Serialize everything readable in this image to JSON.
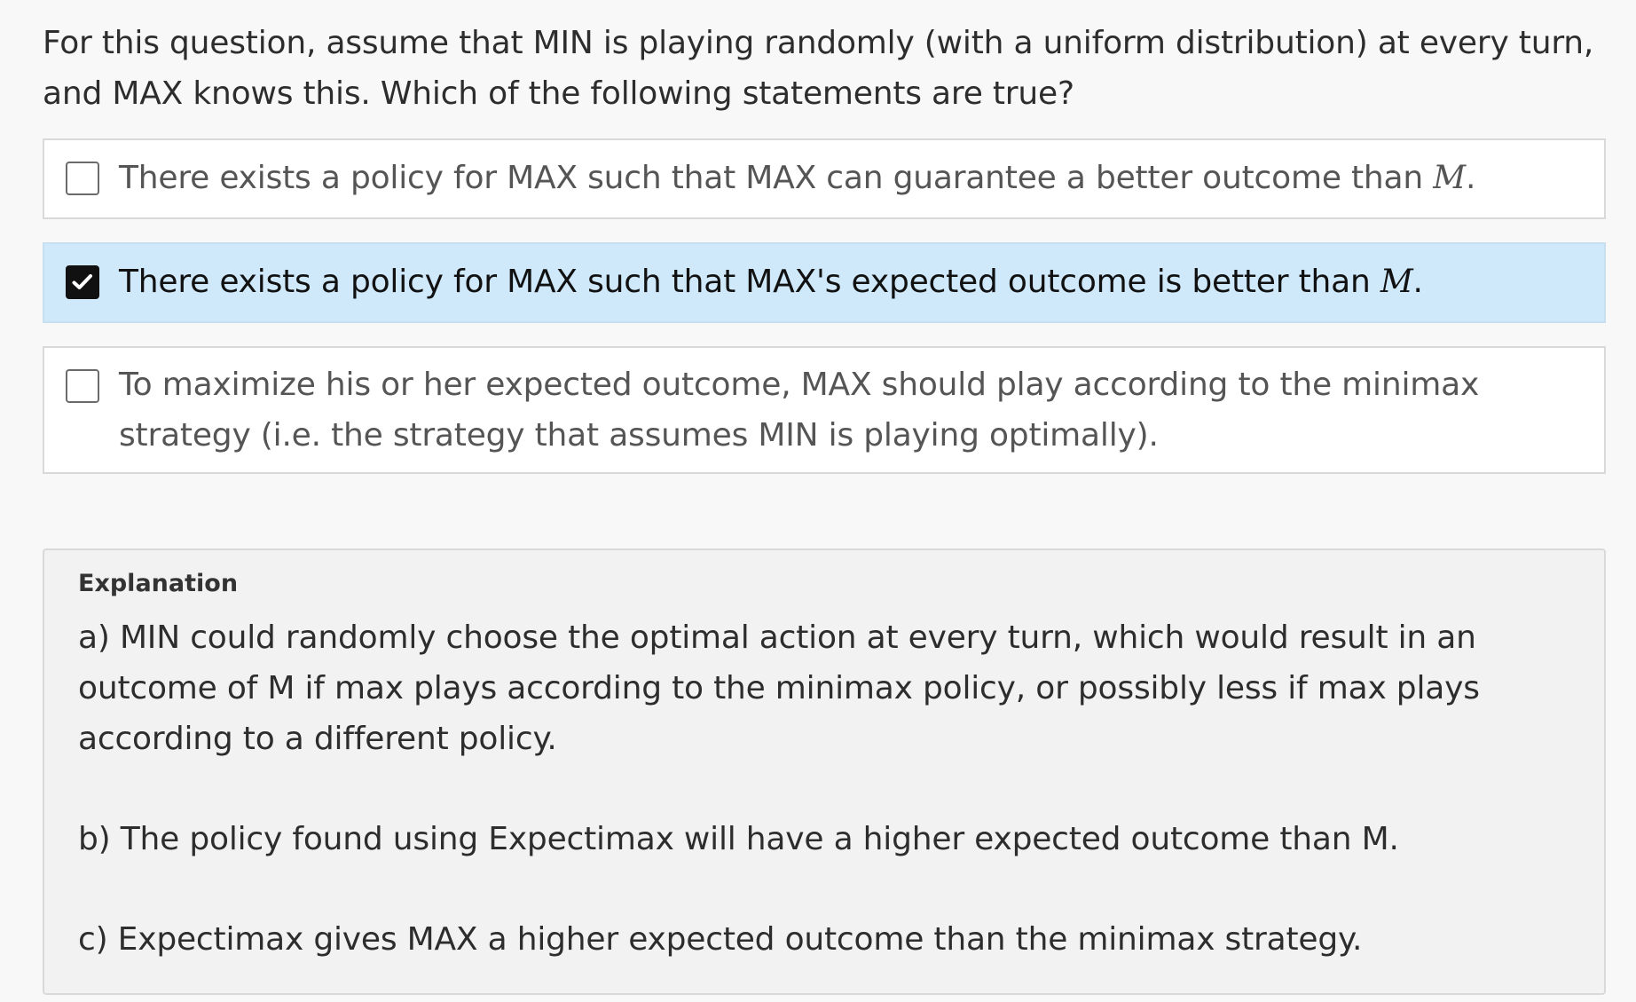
{
  "question": {
    "text": "For this question, assume that MIN is playing randomly (with a uniform distribution) at every turn, and MAX knows this.  Which of the following statements are true?"
  },
  "options": [
    {
      "label_prefix": "There exists a policy for MAX such that MAX can guarantee a better outcome than ",
      "math": "M",
      "label_suffix": ".",
      "checked": false
    },
    {
      "label_prefix": "There exists a policy for MAX such that MAX's expected outcome is better than ",
      "math": "M",
      "label_suffix": ".",
      "checked": true
    },
    {
      "label_prefix": "To maximize his or her expected outcome, MAX should play according to the minimax strategy (i.e. the strategy that assumes MIN is playing optimally).",
      "math": "",
      "label_suffix": "",
      "checked": false
    }
  ],
  "explanation": {
    "title": "Explanation",
    "paragraphs": [
      "a) MIN could randomly choose the optimal action at every turn, which would result in an outcome of M if max plays according to the minimax policy, or possibly less if max plays according to a different policy.",
      "b) The policy found using Expectimax will have a higher expected outcome than M.",
      "c) Expectimax gives MAX a higher expected outcome than the minimax strategy."
    ]
  },
  "colors": {
    "page_background": "#f8f8f8",
    "selected_option_background": "#cfe8fa",
    "explanation_background": "#f2f2f2",
    "border": "#d9d9d9"
  },
  "icons": {
    "checked": "checkmark-icon"
  }
}
